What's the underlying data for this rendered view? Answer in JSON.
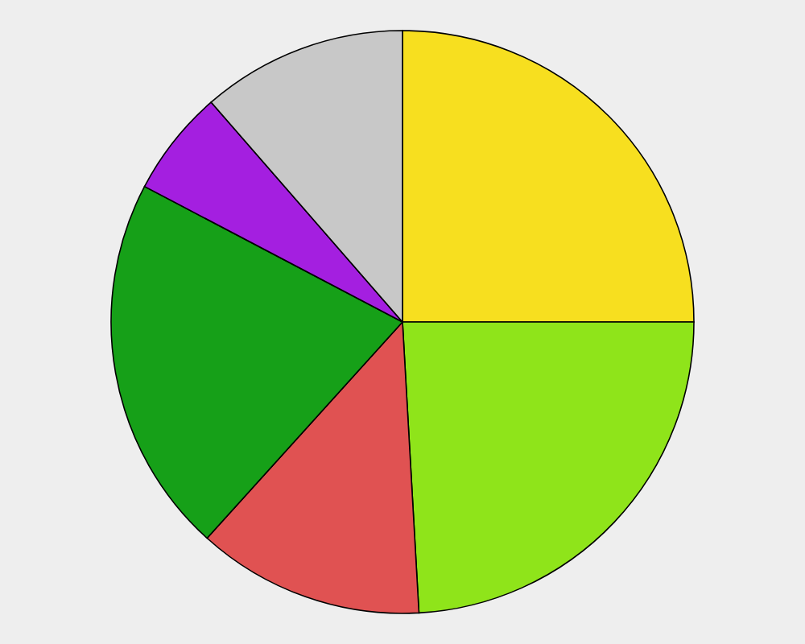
{
  "chart_data": {
    "type": "pie",
    "categories": [
      null,
      null,
      null,
      null,
      null,
      null
    ],
    "values": [
      25,
      24.1,
      12.6,
      21.0,
      5.9,
      11.4
    ],
    "colors": [
      "#f7df1f",
      "#8fe41a",
      "#e05252",
      "#16a018",
      "#a41fe0",
      "#c8c8c8"
    ]
  }
}
